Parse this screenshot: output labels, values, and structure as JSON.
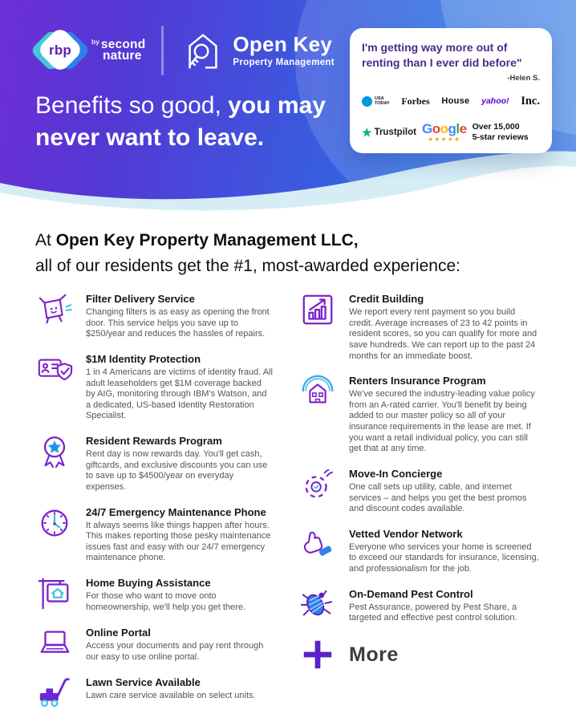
{
  "header": {
    "brand": {
      "rbp": "rbp",
      "by": "by",
      "name_line1": "second",
      "name_line2": "nature"
    },
    "logo": {
      "title": "Open Key",
      "subtitle": "Property Management"
    },
    "headline": {
      "light": "Benefits so good, ",
      "bold_line1": "you may",
      "bold_line2": "never want to leave."
    }
  },
  "testimonial": {
    "quote": "I'm getting way more out of renting than I ever did before\"",
    "attribution": "-Helen S.",
    "media": {
      "usa_today_line1": "USA",
      "usa_today_line2": "TODAY",
      "forbes": "Forbes",
      "house": "House",
      "yahoo": "yahoo!",
      "inc": "Inc."
    },
    "trustpilot": {
      "star": "★",
      "label": "Trustpilot"
    },
    "google": {
      "label": "Google",
      "stars": "★★★★★"
    },
    "reviews_line1": "Over 15,000",
    "reviews_line2": "5-star reviews"
  },
  "intro": {
    "prefix": "At ",
    "company": "Open Key Property Management LLC,",
    "line2": "all of our residents get the #1, most-awarded experience:"
  },
  "benefits": {
    "left": [
      {
        "icon": "filter-delivery-icon",
        "title": "Filter Delivery Service",
        "body": "Changing filters is as easy as opening the front door. This service helps you save up to $250/year and reduces the hassles of repairs."
      },
      {
        "icon": "identity-protection-icon",
        "title": "$1M Identity Protection",
        "body": "1 in 4 Americans are victims of identity fraud. All adult leaseholders get $1M coverage backed by AIG, monitoring through IBM's Watson, and a dedicated, US-based Identity Restoration Specialist."
      },
      {
        "icon": "rewards-ribbon-icon",
        "title": "Resident Rewards Program",
        "body": "Rent day is now rewards day. You'll get cash, giftcards, and exclusive discounts you can use to save up to $4500/year on everyday expenses."
      },
      {
        "icon": "clock-icon",
        "title": "24/7 Emergency Maintenance Phone",
        "body": "It always seems like things happen after hours. This makes reporting those pesky maintenance issues fast and easy with our 24/7 emergency maintenance phone."
      },
      {
        "icon": "home-sign-icon",
        "title": "Home Buying Assistance",
        "body": "For those who want to move onto homeownership, we'll help you get there."
      },
      {
        "icon": "laptop-icon",
        "title": "Online Portal",
        "body": "Access your documents and pay rent through our easy to use online portal."
      },
      {
        "icon": "lawn-mower-icon",
        "title": "Lawn Service Available",
        "body": "Lawn care service available on select units."
      }
    ],
    "right": [
      {
        "icon": "credit-chart-icon",
        "title": "Credit Building",
        "body": "We report every rent payment so you build credit. Average increases of 23 to 42 points in resident scores, so you can qualify for more and save hundreds. We can report up to the past 24 months for an immediate boost."
      },
      {
        "icon": "insured-home-icon",
        "title": "Renters Insurance Program",
        "body": "We've secured the industry-leading value policy from an A-rated carrier. You'll benefit by being added to our master policy so all of your insurance requirements in the lease are met. If you want a retail individual policy, you can still get that at any time."
      },
      {
        "icon": "doorbell-icon",
        "title": "Move-In Concierge",
        "body": "One call sets up utility, cable, and internet services – and helps you get the best promos and discount codes available."
      },
      {
        "icon": "thumbs-up-icon",
        "title": "Vetted Vendor Network",
        "body": "Everyone who services your home is screened to exceed our standards for insurance, licensing, and professionalism for the job."
      },
      {
        "icon": "bug-icon",
        "title": "On-Demand Pest Control",
        "body": "Pest Assurance, powered by Pest Share, a targeted and effective pest control solution."
      }
    ],
    "more": {
      "icon": "plus-icon",
      "label": "More"
    }
  },
  "colors": {
    "header_gradient_start": "#6e2fd8",
    "header_gradient_end": "#2e6ce2",
    "wave_cyan": "#d6edf5",
    "icon_purple": "#7d23c9",
    "accent_teal": "#38c3dc",
    "accent_blue": "#2f80ed",
    "quote_purple": "#4b2b8c",
    "trustpilot_green": "#00b67a",
    "google_star_gold": "#f0a500",
    "google_letters": [
      "#4285F4",
      "#EA4335",
      "#FBBC05",
      "#4285F4",
      "#34A853",
      "#EA4335"
    ]
  }
}
